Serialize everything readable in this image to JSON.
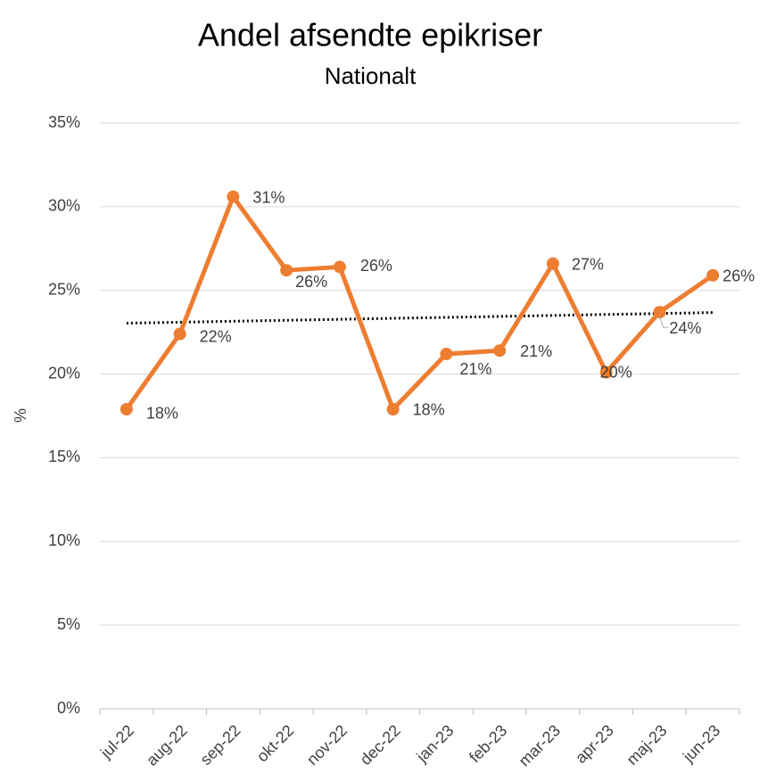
{
  "chart_data": {
    "type": "line",
    "title": "Andel afsendte epikriser",
    "subtitle": "Nationalt",
    "y_label": "%",
    "categories": [
      "jul-22",
      "aug-22",
      "sep-22",
      "okt-22",
      "nov-22",
      "dec-22",
      "jan-23",
      "feb-23",
      "mar-23",
      "apr-23",
      "maj-23",
      "jun-23"
    ],
    "series": [
      {
        "name": "Andel afsendte epikriser",
        "color": "#ed7d31",
        "values": [
          17.9,
          22.4,
          30.6,
          26.2,
          26.4,
          17.9,
          21.2,
          21.4,
          26.6,
          20.1,
          23.7,
          25.9
        ],
        "value_labels": [
          "18%",
          "22%",
          "31%",
          "26%",
          "26%",
          "18%",
          "21%",
          "21%",
          "27%",
          "20%",
          "24%",
          "26%"
        ]
      }
    ],
    "trendline": "linear",
    "trendline_color": "#000000",
    "ylim": [
      0,
      35
    ],
    "yticks": [
      {
        "value": 0,
        "label": "0%"
      },
      {
        "value": 5,
        "label": "5%"
      },
      {
        "value": 10,
        "label": "10%"
      },
      {
        "value": 15,
        "label": "15%"
      },
      {
        "value": 20,
        "label": "20%"
      },
      {
        "value": 25,
        "label": "25%"
      },
      {
        "value": 30,
        "label": "30%"
      },
      {
        "value": 35,
        "label": "35%"
      }
    ],
    "grid": true
  }
}
